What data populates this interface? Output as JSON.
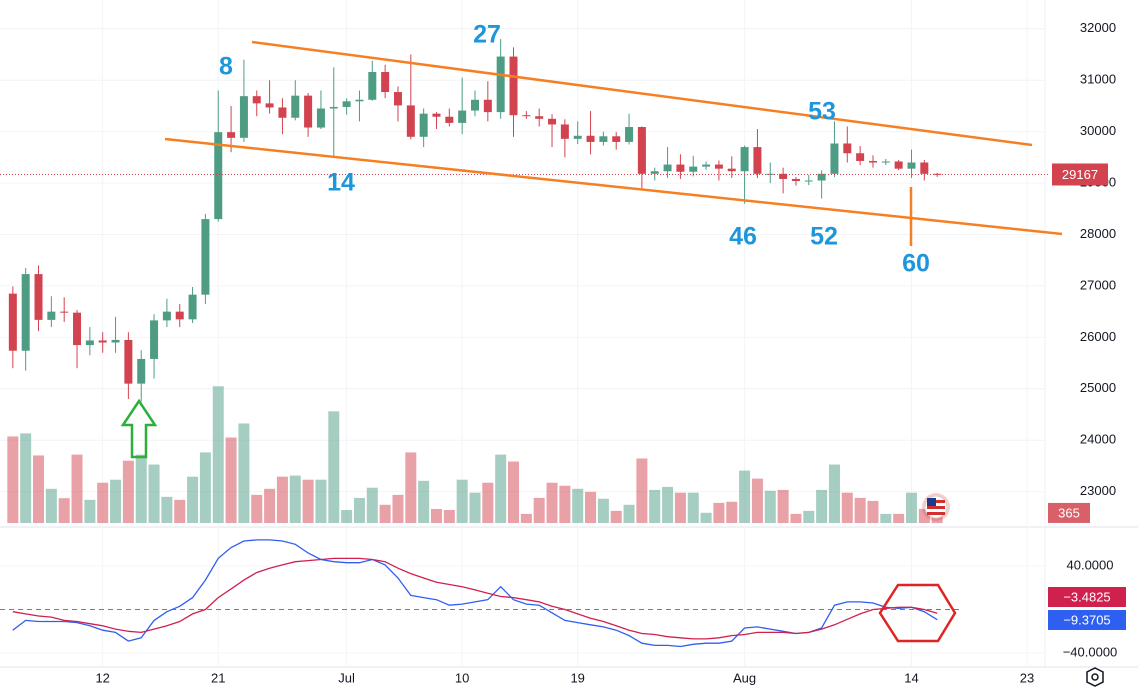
{
  "chart_data": {
    "type": "candlestick",
    "x": [
      5,
      6,
      7,
      8,
      9,
      10,
      11,
      12,
      13,
      14,
      15,
      16,
      17,
      18,
      19,
      20,
      21,
      22,
      23,
      24,
      25,
      26,
      27,
      28,
      29,
      30,
      31,
      32,
      33,
      34,
      35,
      36,
      37,
      38,
      39,
      40,
      41,
      42,
      43,
      44,
      45,
      46,
      47,
      48,
      49,
      50,
      51,
      52,
      53,
      54,
      55,
      56,
      57,
      58,
      59,
      60,
      61,
      62,
      63,
      64,
      65,
      66,
      67,
      68,
      69,
      70,
      71,
      72,
      73,
      74,
      75,
      76,
      77
    ],
    "open": [
      26850,
      25740,
      27230,
      26340,
      26500,
      26480,
      25850,
      25940,
      25900,
      25950,
      25100,
      25580,
      26330,
      26500,
      26350,
      26830,
      28300,
      29990,
      29880,
      30690,
      30550,
      30470,
      30270,
      30700,
      30080,
      30450,
      30480,
      30590,
      30620,
      31160,
      30770,
      30510,
      29900,
      30350,
      30290,
      30170,
      30410,
      30620,
      30380,
      31460,
      30320,
      30300,
      30250,
      30140,
      29860,
      29920,
      29800,
      29910,
      29800,
      30090,
      29180,
      29230,
      29360,
      29220,
      29320,
      29360,
      29280,
      29230,
      29700,
      29180,
      29180,
      29080,
      29040,
      29050,
      29180,
      29770,
      29580,
      29430,
      29400,
      29420,
      29280,
      29400,
      29180
    ],
    "high": [
      26990,
      27350,
      27400,
      26800,
      26780,
      26530,
      26200,
      26100,
      26400,
      26100,
      25750,
      26450,
      26750,
      26650,
      26980,
      28400,
      30800,
      30500,
      31400,
      30800,
      31000,
      30650,
      31000,
      30750,
      30800,
      31250,
      30650,
      30800,
      31380,
      31300,
      30880,
      31500,
      30450,
      30380,
      30450,
      31050,
      30800,
      30980,
      31800,
      31640,
      30400,
      30450,
      30340,
      30240,
      30200,
      30400,
      30000,
      29990,
      30350,
      30100,
      29300,
      29700,
      29560,
      29530,
      29420,
      29440,
      29520,
      29730,
      30050,
      29400,
      29300,
      29120,
      29160,
      29250,
      30200,
      30100,
      29720,
      29540,
      29470,
      29450,
      29650,
      29450,
      29200
    ],
    "low": [
      25400,
      25350,
      26120,
      26200,
      26300,
      25400,
      25650,
      25700,
      25700,
      24800,
      24750,
      25200,
      26200,
      26200,
      26280,
      26650,
      28250,
      29600,
      29800,
      30300,
      30350,
      29950,
      30220,
      29900,
      30050,
      29500,
      30330,
      30200,
      30600,
      30650,
      30200,
      29850,
      29700,
      30050,
      30100,
      29950,
      30300,
      30200,
      30250,
      29900,
      30250,
      30100,
      29700,
      29500,
      29760,
      29560,
      29730,
      29650,
      29750,
      28900,
      29050,
      29100,
      29080,
      29130,
      29260,
      29050,
      29100,
      28600,
      29100,
      29000,
      28800,
      28950,
      28960,
      28700,
      29120,
      29400,
      29350,
      29300,
      29350,
      29250,
      29100,
      29050,
      29120
    ],
    "close": [
      25740,
      27230,
      26340,
      26500,
      26480,
      25850,
      25940,
      25900,
      25950,
      25100,
      25580,
      26330,
      26500,
      26350,
      26830,
      28300,
      29990,
      29880,
      30690,
      30550,
      30470,
      30270,
      30700,
      30080,
      30450,
      30480,
      30590,
      30620,
      31160,
      30770,
      30510,
      29900,
      30350,
      30290,
      30170,
      30410,
      30620,
      30380,
      31460,
      30320,
      30300,
      30250,
      30140,
      29860,
      29920,
      29800,
      29910,
      29800,
      30090,
      29180,
      29230,
      29360,
      29220,
      29320,
      29360,
      29280,
      29230,
      29700,
      29180,
      29180,
      29080,
      29040,
      29050,
      29180,
      29770,
      29580,
      29430,
      29400,
      29420,
      29280,
      29400,
      29180,
      29167
    ],
    "volume": [
      3140,
      3250,
      2450,
      1240,
      900,
      2480,
      840,
      1460,
      1570,
      2260,
      2480,
      2120,
      950,
      840,
      1680,
      2560,
      4960,
      3100,
      3610,
      1020,
      1240,
      1680,
      1720,
      1570,
      1570,
      4050,
      470,
      910,
      1280,
      660,
      1020,
      2560,
      1530,
      510,
      470,
      1570,
      1100,
      1460,
      2480,
      2230,
      330,
      910,
      1460,
      1350,
      1240,
      1130,
      880,
      440,
      660,
      2340,
      1200,
      1310,
      1100,
      1100,
      370,
      730,
      770,
      1900,
      1610,
      1170,
      1200,
      330,
      440,
      1200,
      2120,
      1100,
      910,
      800,
      330,
      330,
      1100,
      510,
      365
    ],
    "up_color": "#4e9c84",
    "down_color": "#d2434f",
    "xlim": [
      4,
      85.4
    ],
    "xticks": [
      {
        "value": 12,
        "label": "12"
      },
      {
        "value": 21,
        "label": "21"
      },
      {
        "value": 31,
        "label": "Jul"
      },
      {
        "value": 40,
        "label": "10"
      },
      {
        "value": 49,
        "label": "19"
      },
      {
        "value": 62,
        "label": "Aug"
      },
      {
        "value": 75,
        "label": "14"
      },
      {
        "value": 84,
        "label": "23"
      }
    ],
    "ylim": [
      22390,
      32560
    ],
    "yticks": [
      32000,
      31000,
      30000,
      29000,
      28000,
      27000,
      26000,
      25000,
      24000,
      23000
    ],
    "vlim": [
      0,
      7000
    ],
    "y3lim": [
      -51,
      73.1
    ],
    "y3ticks": [
      {
        "value": 40,
        "label": "40.0000"
      },
      {
        "value": -40,
        "label": "−40.0000"
      }
    ],
    "y3_baseline": 0,
    "series": [
      {
        "name": "fast",
        "color": "#2f5ff0",
        "values": [
          -19,
          -10,
          -11,
          -11,
          -11,
          -12,
          -15,
          -19,
          -21,
          -29,
          -26,
          -10,
          -2,
          3,
          11,
          27,
          47,
          57,
          63,
          64,
          64,
          63,
          60,
          52,
          46,
          44,
          43,
          43,
          46,
          41,
          29,
          13,
          11,
          9,
          4,
          5,
          7,
          9,
          21,
          9,
          5,
          4,
          -3,
          -10,
          -12,
          -14,
          -16,
          -19,
          -24,
          -31,
          -33,
          -33,
          -34,
          -32,
          -31,
          -31,
          -29,
          -17,
          -16,
          -18,
          -20,
          -22,
          -21,
          -17,
          4,
          7,
          7,
          6,
          2,
          1,
          2,
          -2,
          -9.3705
        ],
        "last_label": "−9.3705"
      },
      {
        "name": "slow",
        "color": "#d0204e",
        "values": [
          -2,
          -4,
          -6,
          -7,
          -10,
          -11,
          -13,
          -15,
          -18,
          -20,
          -21,
          -18,
          -15,
          -11,
          -4,
          0,
          11,
          19,
          27,
          34,
          38,
          41,
          44,
          45,
          46,
          47,
          47,
          47,
          46,
          44,
          38,
          33,
          29,
          25,
          23,
          21,
          18,
          15,
          12,
          11,
          9,
          7,
          3,
          0,
          -4,
          -8,
          -11,
          -15,
          -19,
          -22,
          -23,
          -25,
          -26,
          -27,
          -27,
          -26,
          -24,
          -23,
          -21,
          -21,
          -21,
          -22,
          -21,
          -18,
          -14,
          -9,
          -4,
          0,
          1,
          2,
          2,
          0,
          -3.4825
        ],
        "last_label": "−3.4825"
      }
    ],
    "annotations": [
      "8",
      "27",
      "14",
      "53",
      "46",
      "52",
      "60"
    ]
  }
}
